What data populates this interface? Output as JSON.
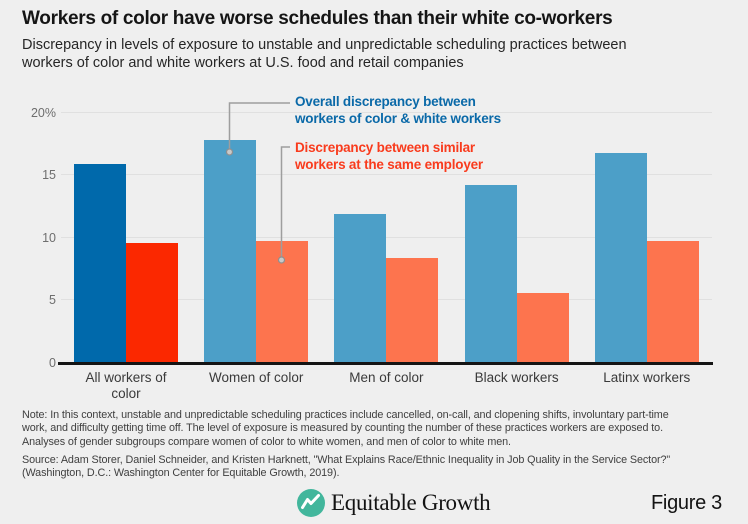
{
  "chart_data": {
    "type": "bar",
    "title": "Workers of color have worse schedules than their white co-workers",
    "subtitle_lines": [
      "Discrepancy in levels of exposure to unstable and unpredictable scheduling practices between",
      "workers of color and white workers at U.S. food and retail companies"
    ],
    "unit": "%",
    "categories": [
      "All workers of color",
      "Women of color",
      "Men of color",
      "Black workers",
      "Latinx workers"
    ],
    "series": [
      {
        "name": "Overall discrepancy between workers of color & white workers",
        "legend_lines": [
          "Overall discrepancy between",
          "workers of color & white workers"
        ],
        "values": [
          15.8,
          17.7,
          11.8,
          14.1,
          16.7
        ],
        "color": "#4c9fc8",
        "highlight_color": "#0069ab",
        "legend_text_color": "#0a69a8"
      },
      {
        "name": "Discrepancy between similar workers at the same employer",
        "legend_lines": [
          "Discrepancy between similar",
          "workers at the same employer"
        ],
        "values": [
          9.5,
          9.7,
          8.3,
          5.5,
          9.7
        ],
        "color": "#fd744e",
        "highlight_color": "#fb2800",
        "legend_text_color": "#f93b1d"
      }
    ],
    "highlight_category_index": 0,
    "ylim": [
      0,
      21
    ],
    "yticks": [
      {
        "v": 0,
        "label": "0"
      },
      {
        "v": 5,
        "label": "5"
      },
      {
        "v": 10,
        "label": "10"
      },
      {
        "v": 15,
        "label": "15"
      },
      {
        "v": 20,
        "label": "20%"
      }
    ],
    "grid": true,
    "legend_position": "top callouts pointing to Women of color bars"
  },
  "notes": {
    "note_lines": [
      "Note: In this context, unstable and unpredictable scheduling practices include cancelled, on-call, and clopening shifts, involuntary part-time",
      "work, and difficulty getting time off. The level of exposure is measured by counting the number of these practices workers are exposed to.",
      "Analyses of gender subgroups compare women of color to white women, and men of color to white men."
    ],
    "source_lines": [
      "Source: Adam Storer, Daniel Schneider, and Kristen Harknett, \"What Explains Race/Ethnic Inequality in Job Quality in the Service Sector?\"",
      "(Washington, D.C.: Washington Center for Equitable Growth, 2019)."
    ]
  },
  "footer": {
    "brand": "Equitable Growth",
    "figure_label": "Figure 3",
    "logo_color": "#42b69c"
  },
  "colors": {
    "background": "#efefef",
    "gridline": "#e0e0e0",
    "axis": "#141414",
    "callout_line": "#9e9e9e"
  }
}
